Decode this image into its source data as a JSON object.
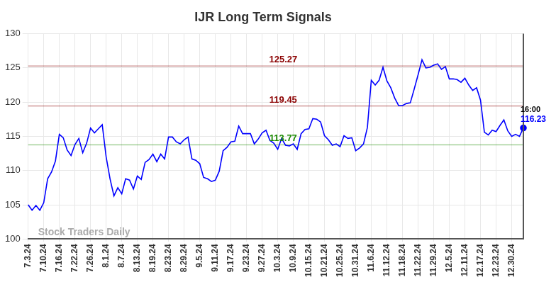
{
  "chart_data": {
    "type": "line",
    "title": "IJR Long Term Signals",
    "categories": [
      "7.3.24",
      null,
      null,
      null,
      "7.10.24",
      null,
      null,
      null,
      "7.16.24",
      null,
      null,
      null,
      "7.22.24",
      null,
      null,
      null,
      "7.26.24",
      null,
      null,
      null,
      "8.1.24",
      null,
      null,
      null,
      "8.7.24",
      null,
      null,
      null,
      "8.13.24",
      null,
      null,
      null,
      "8.19.24",
      null,
      null,
      null,
      "8.23.24",
      null,
      null,
      null,
      "8.29.24",
      null,
      null,
      null,
      "9.5.24",
      null,
      null,
      null,
      "9.11.24",
      null,
      null,
      null,
      "9.17.24",
      null,
      null,
      null,
      "9.23.24",
      null,
      null,
      null,
      "9.27.24",
      null,
      null,
      null,
      "10.3.24",
      null,
      null,
      null,
      "10.9.24",
      null,
      null,
      null,
      "10.15.24",
      null,
      null,
      null,
      "10.21.24",
      null,
      null,
      null,
      "10.25.24",
      null,
      null,
      null,
      "10.31.24",
      null,
      null,
      null,
      "11.6.24",
      null,
      null,
      null,
      "11.12.24",
      null,
      null,
      null,
      "11.18.24",
      null,
      null,
      null,
      "11.22.24",
      null,
      null,
      null,
      "11.29.24",
      null,
      null,
      null,
      "12.5.24",
      null,
      null,
      null,
      "12.11.24",
      null,
      null,
      null,
      "12.17.24",
      null,
      null,
      null,
      "12.23.24",
      null,
      null,
      null,
      "12.30.24",
      null,
      null,
      null
    ],
    "values": [
      105.0,
      104.2,
      104.9,
      104.2,
      105.3,
      108.8,
      109.8,
      111.4,
      115.3,
      114.8,
      113.0,
      112.2,
      113.8,
      114.7,
      112.6,
      114.0,
      116.2,
      115.5,
      116.1,
      116.7,
      112.0,
      108.8,
      106.3,
      107.5,
      106.6,
      108.8,
      108.6,
      107.3,
      109.2,
      108.7,
      111.2,
      111.6,
      112.4,
      111.3,
      112.4,
      111.7,
      114.9,
      114.9,
      114.2,
      113.9,
      114.5,
      114.9,
      111.7,
      111.5,
      111.0,
      109.0,
      108.8,
      108.4,
      108.6,
      109.9,
      112.9,
      113.4,
      114.2,
      114.3,
      116.5,
      115.4,
      115.4,
      115.4,
      113.9,
      114.6,
      115.5,
      115.9,
      114.4,
      114.0,
      113.1,
      114.7,
      113.7,
      113.6,
      113.9,
      113.1,
      115.4,
      116.0,
      116.1,
      117.6,
      117.5,
      117.1,
      115.1,
      114.5,
      113.7,
      113.9,
      113.5,
      115.1,
      114.7,
      114.8,
      112.9,
      113.3,
      113.9,
      116.3,
      123.2,
      122.5,
      123.2,
      125.1,
      123.1,
      122.1,
      120.6,
      119.5,
      119.5,
      119.8,
      119.9,
      121.9,
      124.0,
      126.2,
      125.0,
      125.1,
      125.4,
      125.6,
      124.8,
      125.2,
      123.4,
      123.4,
      123.3,
      122.9,
      123.5,
      122.5,
      121.7,
      122.1,
      120.3,
      115.6,
      115.2,
      115.9,
      115.7,
      116.6,
      117.4,
      115.8,
      115.0,
      115.3,
      115.0,
      116.23
    ],
    "color": "#0000ff",
    "ylim": [
      100,
      130
    ],
    "yticks": [
      100,
      105,
      110,
      115,
      120,
      125,
      130
    ],
    "grid": true,
    "reference_lines": [
      {
        "value": 125.27,
        "label": "125.27",
        "color": "#8b0000"
      },
      {
        "value": 119.45,
        "label": "119.45",
        "color": "#8b0000"
      },
      {
        "value": 113.77,
        "label": "113.77",
        "color": "#1a8a00"
      }
    ],
    "end_annotation": {
      "text": "16:00",
      "value": 116.23
    },
    "watermark": "Stock Traders Daily"
  }
}
